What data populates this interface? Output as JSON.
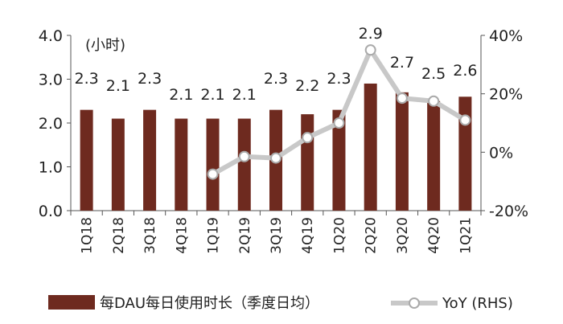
{
  "chart_data": {
    "type": "bar+line",
    "categories": [
      "1Q18",
      "2Q18",
      "3Q18",
      "4Q18",
      "1Q19",
      "2Q19",
      "3Q19",
      "4Q19",
      "1Q20",
      "2Q20",
      "3Q20",
      "4Q20",
      "1Q21"
    ],
    "series": [
      {
        "name": "每DAU每日使用时长（季度日均）",
        "type": "bar",
        "axis": "left",
        "values": [
          2.3,
          2.1,
          2.3,
          2.1,
          2.1,
          2.1,
          2.3,
          2.2,
          2.3,
          2.9,
          2.7,
          2.5,
          2.6
        ],
        "labels": [
          "2.3",
          "2.1",
          "2.3",
          "2.1",
          "2.1",
          "2.1",
          "2.3",
          "2.2",
          "2.3",
          "2.9",
          "2.7",
          "2.5",
          "2.6"
        ],
        "color": "#6e2a1f"
      },
      {
        "name": "YoY (RHS)",
        "type": "line",
        "axis": "right",
        "values": [
          null,
          null,
          null,
          null,
          -7.5,
          -1.5,
          -2,
          5,
          10,
          35,
          18.5,
          17.5,
          11
        ],
        "color": "#c8c8c8"
      }
    ],
    "left_axis": {
      "unit": "(小时)",
      "range": [
        0,
        4
      ],
      "ticks": [
        "0.0",
        "1.0",
        "2.0",
        "3.0",
        "4.0"
      ]
    },
    "right_axis": {
      "range": [
        -20,
        40
      ],
      "ticks": [
        "-20%",
        "0%",
        "20%",
        "40%"
      ]
    }
  }
}
